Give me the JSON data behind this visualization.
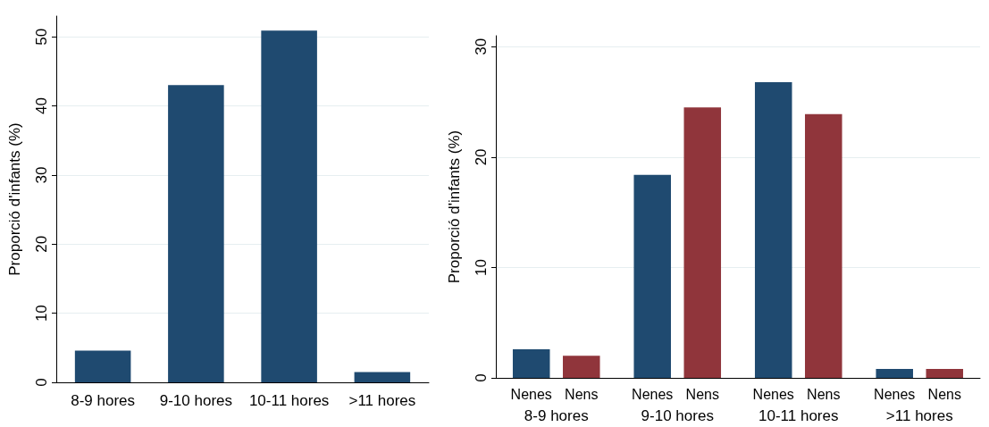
{
  "chart_data": [
    {
      "type": "bar",
      "ylabel": "Proporció d'infants (%)",
      "categories": [
        "8-9 hores",
        "9-10 hores",
        "10-11 hores",
        ">11 hores"
      ],
      "values": [
        4.6,
        43.0,
        50.9,
        1.5
      ],
      "color": "#1f4a70",
      "ylim": [
        0,
        53
      ],
      "yticks": [
        0,
        10,
        20,
        30,
        40,
        50
      ],
      "grid": "y",
      "legend": false
    },
    {
      "type": "bar",
      "ylabel": "Proporció d'infants (%)",
      "categories": [
        "8-9 hores",
        "9-10 hores",
        "10-11 hores",
        ">11 hores"
      ],
      "series": [
        {
          "name": "Nenes",
          "color": "#1f4a70",
          "values": [
            2.6,
            18.4,
            26.8,
            0.8
          ]
        },
        {
          "name": "Nens",
          "color": "#90353b",
          "values": [
            2.0,
            24.5,
            23.9,
            0.8
          ]
        }
      ],
      "ylim": [
        0,
        31
      ],
      "yticks": [
        0,
        10,
        20,
        30
      ],
      "grid": "y",
      "legend": false
    }
  ]
}
